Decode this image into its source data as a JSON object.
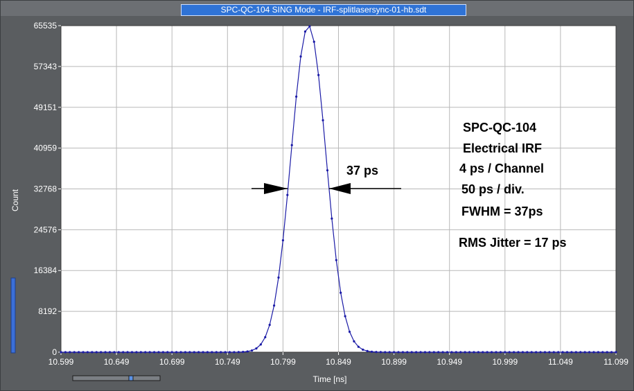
{
  "window": {
    "title": "SPC-QC-104  SING Mode - IRF-splitlasersync-01-hb.sdt"
  },
  "colors": {
    "frame": "#5a5d60",
    "title_bg": "#2f73d6",
    "plot_bg": "#ffffff",
    "grid": "#b8b8b8",
    "curve": "#1a1aa6",
    "marker": "#1a1aa6",
    "indicator": "#3b6fd8"
  },
  "chart_data": {
    "type": "line",
    "xlabel": "Time [ns]",
    "ylabel": "Count",
    "xlim": [
      10.599,
      11.099
    ],
    "ylim": [
      0,
      65535
    ],
    "x_ticks": [
      "10.599",
      "10.649",
      "10.699",
      "10.749",
      "10.799",
      "10.849",
      "10.899",
      "10.949",
      "10.999",
      "11.049",
      "11.099"
    ],
    "y_ticks": [
      "0",
      "8192",
      "16384",
      "24576",
      "32768",
      "40959",
      "49151",
      "57343",
      "65535"
    ],
    "grid": true,
    "series": [
      {
        "peak_x": 10.822,
        "peak_y": 65535,
        "fwhm_ns": 0.037,
        "channel_width_ns": 0.004,
        "x_start": 10.599,
        "x_end": 11.099,
        "baseline": 0
      }
    ],
    "annotations": {
      "fwhm_arrow_label": "37 ps",
      "text_lines": [
        "SPC-QC-104",
        "Electrical IRF",
        "4 ps / Channel",
        "50 ps / div.",
        "FWHM = 37ps",
        "RMS Jitter = 17 ps"
      ]
    }
  }
}
